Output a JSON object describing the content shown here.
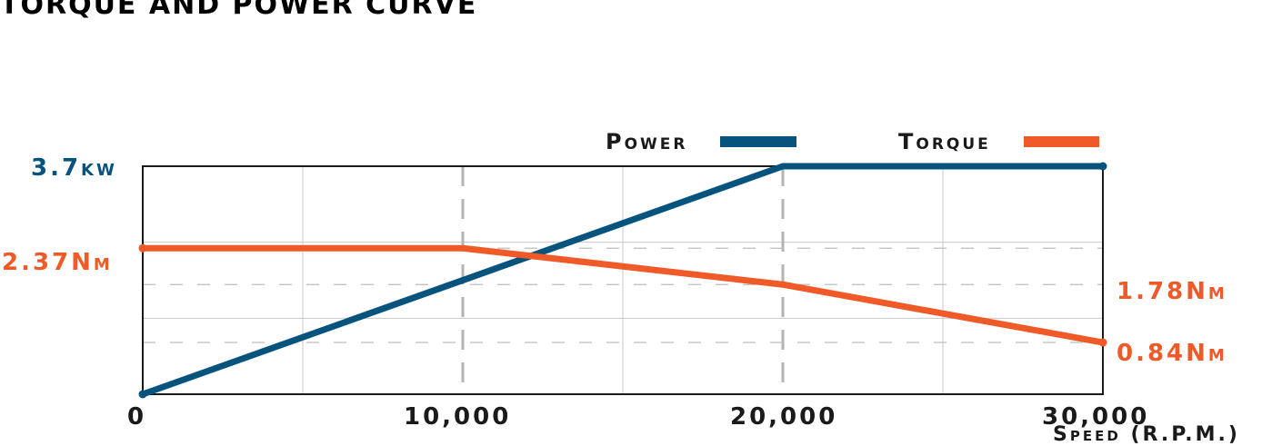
{
  "title": "Torque and Power Curve",
  "colors": {
    "power": "#06537d",
    "torque": "#f05a28",
    "text": "#1a1a1a"
  },
  "chart_data": {
    "type": "line",
    "title": "Torque and Power Curve",
    "xlabel": "Speed (R.P.M.)",
    "xlim": [
      0,
      30000
    ],
    "xticks": [
      0,
      10000,
      20000,
      30000
    ],
    "xtick_labels": [
      "0",
      "10,000",
      "20,000",
      "30,000"
    ],
    "legend_position": "top-right",
    "grid": true,
    "series": [
      {
        "name": "Power",
        "unit": "kW",
        "ylim": [
          0,
          3.7
        ],
        "x": [
          0,
          20000,
          30000
        ],
        "y": [
          0,
          3.7,
          3.7
        ]
      },
      {
        "name": "Torque",
        "unit": "Nm",
        "ylim": [
          0,
          3.7
        ],
        "x": [
          0,
          10000,
          20000,
          30000
        ],
        "y": [
          2.37,
          2.37,
          1.78,
          0.84
        ]
      }
    ],
    "annotations": {
      "power_max": "3.7kw",
      "torque_max": "2.37Nm",
      "torque_20000": "1.78Nm",
      "torque_30000": "0.84Nm"
    }
  }
}
